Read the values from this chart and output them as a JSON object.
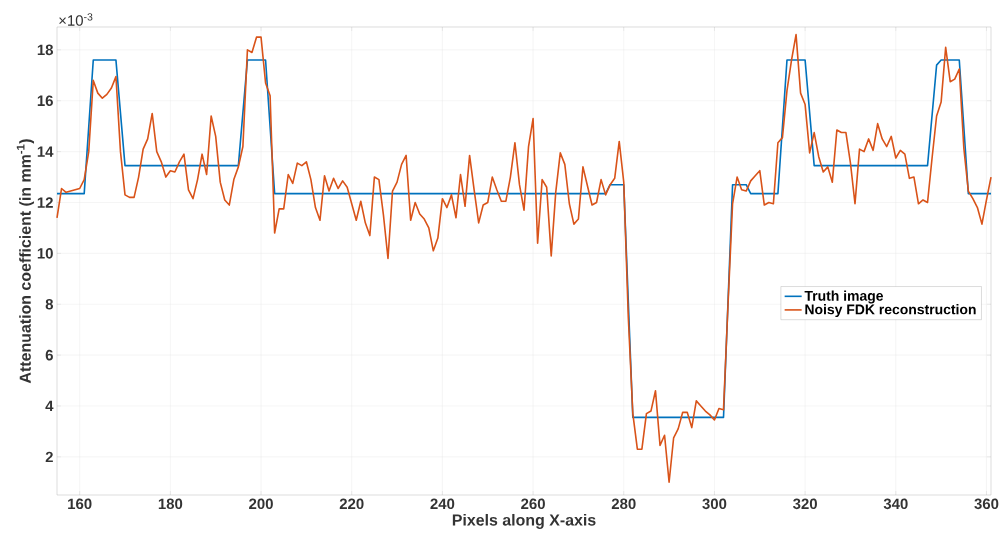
{
  "chart_data": {
    "type": "line",
    "xlabel": "Pixels along X-axis",
    "ylabel": "Attenuation coefficient (in mm$^{-1}$)",
    "annotations": [
      "×10$^{-3}$"
    ],
    "xlim": [
      155,
      361
    ],
    "ylim": [
      0.5,
      18.9
    ],
    "xticks": [
      160,
      180,
      200,
      220,
      240,
      260,
      280,
      300,
      320,
      340,
      360
    ],
    "yticks": [
      2,
      4,
      6,
      8,
      10,
      12,
      14,
      16,
      18
    ],
    "grid": true,
    "legend": "right",
    "marker": "none",
    "line_style": "solid",
    "series": [
      {
        "name": "Truth image",
        "color": "#0072bd",
        "x": [
          155,
          161,
          163,
          168,
          170,
          195,
          197,
          201,
          203,
          276,
          277,
          280,
          282,
          302,
          304,
          307,
          308,
          314,
          316,
          320,
          322,
          347,
          349,
          350,
          354,
          356,
          361
        ],
        "values": [
          12.35,
          12.35,
          17.6,
          17.6,
          13.45,
          13.45,
          17.6,
          17.6,
          12.35,
          12.35,
          12.7,
          12.7,
          3.55,
          3.55,
          12.7,
          12.7,
          12.35,
          12.35,
          17.6,
          17.6,
          13.45,
          13.45,
          17.4,
          17.6,
          17.6,
          12.35,
          12.35
        ]
      },
      {
        "name": "Noisy FDK reconstruction",
        "color": "#d95319",
        "x": [
          155,
          156,
          157,
          158,
          159,
          160,
          161,
          162,
          163,
          164,
          165,
          166,
          167,
          168,
          169,
          170,
          171,
          172,
          173,
          174,
          175,
          176,
          177,
          178,
          179,
          180,
          181,
          182,
          183,
          184,
          185,
          186,
          187,
          188,
          189,
          190,
          191,
          192,
          193,
          194,
          195,
          196,
          197,
          198,
          199,
          200,
          201,
          202,
          203,
          204,
          205,
          206,
          207,
          208,
          209,
          210,
          211,
          212,
          213,
          214,
          215,
          216,
          217,
          218,
          219,
          220,
          221,
          222,
          223,
          224,
          225,
          226,
          227,
          228,
          229,
          230,
          231,
          232,
          233,
          234,
          235,
          236,
          237,
          238,
          239,
          240,
          241,
          242,
          243,
          244,
          245,
          246,
          247,
          248,
          249,
          250,
          251,
          252,
          253,
          254,
          255,
          256,
          257,
          258,
          259,
          260,
          261,
          262,
          263,
          264,
          265,
          266,
          267,
          268,
          269,
          270,
          271,
          272,
          273,
          274,
          275,
          276,
          277,
          278,
          279,
          280,
          281,
          282,
          283,
          284,
          285,
          286,
          287,
          288,
          289,
          290,
          291,
          292,
          293,
          294,
          295,
          296,
          297,
          298,
          299,
          300,
          301,
          302,
          303,
          304,
          305,
          306,
          307,
          308,
          309,
          310,
          311,
          312,
          313,
          314,
          315,
          316,
          317,
          318,
          319,
          320,
          321,
          322,
          323,
          324,
          325,
          326,
          327,
          328,
          329,
          330,
          331,
          332,
          333,
          334,
          335,
          336,
          337,
          338,
          339,
          340,
          341,
          342,
          343,
          344,
          345,
          346,
          347,
          348,
          349,
          350,
          351,
          352,
          353,
          354,
          355,
          356,
          357,
          358,
          359,
          360,
          361
        ],
        "values": [
          11.4,
          12.55,
          12.4,
          12.45,
          12.5,
          12.55,
          12.9,
          14.0,
          16.8,
          16.3,
          16.1,
          16.25,
          16.5,
          16.95,
          14.0,
          12.3,
          12.2,
          12.2,
          13.0,
          14.1,
          14.5,
          15.5,
          14.0,
          13.6,
          13.0,
          13.25,
          13.2,
          13.6,
          13.9,
          12.5,
          12.15,
          12.9,
          13.9,
          13.1,
          15.4,
          14.6,
          12.8,
          12.1,
          11.9,
          12.9,
          13.4,
          14.2,
          18.0,
          17.9,
          18.5,
          18.5,
          16.7,
          16.2,
          10.8,
          11.75,
          11.75,
          13.1,
          12.75,
          13.55,
          13.45,
          13.6,
          12.9,
          11.8,
          11.3,
          13.05,
          12.45,
          12.95,
          12.55,
          12.85,
          12.6,
          11.95,
          11.3,
          12.05,
          11.2,
          10.7,
          13.0,
          12.9,
          11.5,
          9.8,
          12.45,
          12.8,
          13.5,
          13.85,
          11.3,
          12.0,
          11.55,
          11.35,
          11.0,
          10.1,
          10.6,
          12.15,
          11.8,
          12.3,
          11.4,
          13.1,
          11.85,
          13.85,
          12.5,
          11.2,
          11.9,
          12.0,
          13.0,
          12.5,
          12.05,
          12.05,
          13.0,
          14.35,
          12.7,
          11.7,
          14.2,
          15.3,
          10.4,
          12.9,
          12.6,
          9.9,
          12.4,
          13.95,
          13.5,
          11.95,
          11.15,
          11.35,
          13.4,
          12.65,
          11.9,
          12.0,
          12.9,
          12.3,
          12.7,
          12.95,
          14.4,
          12.8,
          7.5,
          3.7,
          2.3,
          2.3,
          3.7,
          3.8,
          4.6,
          2.45,
          2.85,
          1.0,
          2.75,
          3.1,
          3.75,
          3.75,
          3.15,
          4.2,
          4.0,
          3.8,
          3.65,
          3.45,
          3.9,
          3.85,
          8.0,
          11.95,
          13.0,
          12.5,
          12.45,
          12.85,
          13.05,
          13.25,
          11.9,
          12.0,
          11.95,
          14.35,
          14.55,
          16.4,
          17.6,
          18.6,
          16.3,
          15.85,
          13.95,
          14.75,
          13.8,
          13.2,
          13.4,
          12.8,
          14.85,
          14.75,
          14.75,
          13.55,
          11.95,
          14.1,
          14.0,
          14.5,
          14.05,
          15.1,
          14.5,
          14.2,
          14.6,
          13.75,
          14.05,
          13.9,
          12.95,
          13.0,
          11.95,
          12.1,
          12.0,
          13.75,
          15.4,
          15.95,
          18.1,
          16.75,
          16.85,
          17.25,
          14.15,
          12.45,
          12.15,
          11.8,
          11.15,
          12.1,
          13.0
        ]
      }
    ]
  }
}
